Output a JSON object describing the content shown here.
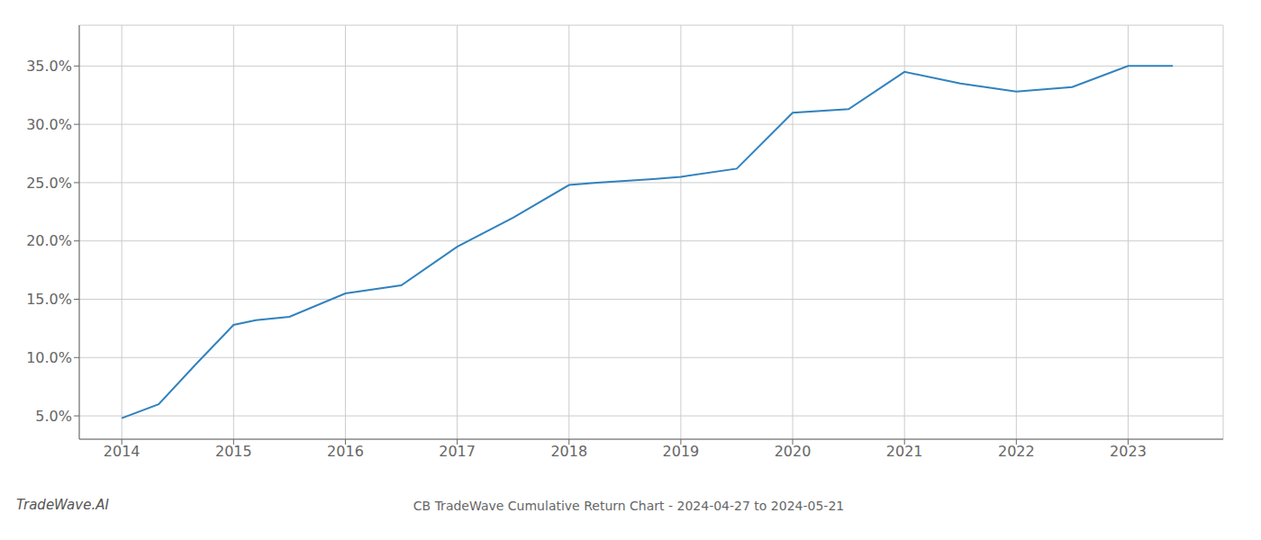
{
  "chart_data": {
    "type": "line",
    "title": "CB TradeWave Cumulative Return Chart - 2024-04-27 to 2024-05-21",
    "annotations": [
      "TradeWave.AI"
    ],
    "x": [
      2014.0,
      2014.33,
      2014.67,
      2015.0,
      2015.2,
      2015.5,
      2016.0,
      2016.5,
      2017.0,
      2017.5,
      2018.0,
      2018.25,
      2018.75,
      2019.0,
      2019.5,
      2020.0,
      2020.5,
      2021.0,
      2021.5,
      2022.0,
      2022.5,
      2023.0,
      2023.4
    ],
    "values": [
      4.8,
      6.0,
      9.5,
      12.8,
      13.2,
      13.5,
      15.5,
      16.2,
      19.5,
      22.0,
      24.8,
      25.0,
      25.3,
      25.5,
      26.2,
      31.0,
      31.3,
      34.5,
      33.5,
      32.8,
      33.2,
      35.0,
      35.0
    ],
    "xlim": [
      2013.62,
      2023.85
    ],
    "ylim": [
      3.0,
      38.5
    ],
    "xticks": [
      2014,
      2015,
      2016,
      2017,
      2018,
      2019,
      2020,
      2021,
      2022,
      2023
    ],
    "yticks": [
      {
        "value": 5.0,
        "label": "5.0%"
      },
      {
        "value": 10.0,
        "label": "10.0%"
      },
      {
        "value": 15.0,
        "label": "15.0%"
      },
      {
        "value": 20.0,
        "label": "20.0%"
      },
      {
        "value": 25.0,
        "label": "25.0%"
      },
      {
        "value": 30.0,
        "label": "30.0%"
      },
      {
        "value": 35.0,
        "label": "35.0%"
      }
    ],
    "grid": true
  }
}
